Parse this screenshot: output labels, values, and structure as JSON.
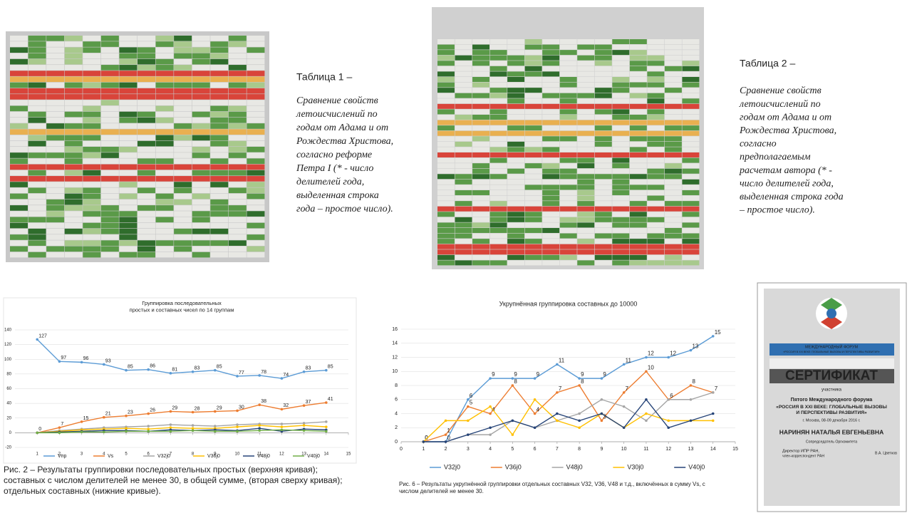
{
  "table1": {
    "title": "Таблица 1 –",
    "lines": [
      "Сравнение свойств",
      "летоисчислений по",
      "годам от Адама и от",
      "Рождества Христова,",
      "согласно реформе",
      "Петра I (* - число",
      "делителей года,",
      "выделенная строка",
      "года – простое число)."
    ]
  },
  "table2": {
    "title": "Таблица  2  –",
    "lines": [
      "Сравнение свойств",
      "летоисчислений по",
      "годам от Адама и от",
      "Рождества Христова,",
      "согласно",
      "предполагаемым",
      "расчетам автора (* -",
      "число делителей года,",
      "выделенная строка года",
      "– простое число)."
    ]
  },
  "chart_data": [
    {
      "type": "line",
      "title": [
        "Группировка последовательных",
        "простых и составных чисел по 14 группам"
      ],
      "x": [
        1,
        2,
        3,
        4,
        5,
        6,
        7,
        8,
        9,
        10,
        11,
        12,
        13,
        14
      ],
      "xlim": [
        0,
        15
      ],
      "xticks": [
        1,
        2,
        3,
        4,
        5,
        6,
        7,
        8,
        9,
        10,
        11,
        12,
        13,
        14,
        15
      ],
      "ylim": [
        -20,
        140
      ],
      "yticks": [
        -20,
        0,
        20,
        40,
        60,
        80,
        100,
        120,
        140
      ],
      "grid": true,
      "series": [
        {
          "name": "Vпр",
          "color": "#5b9bd5",
          "labeled": true,
          "values": [
            127,
            97,
            96,
            93,
            85,
            86,
            81,
            83,
            85,
            77,
            78,
            74,
            83,
            85
          ]
        },
        {
          "name": "Vs",
          "color": "#ed7d31",
          "labeled": true,
          "values": [
            0,
            7,
            15,
            21,
            23,
            26,
            29,
            28,
            29,
            30,
            38,
            32,
            37,
            41
          ]
        },
        {
          "name": "V32j0",
          "color": "#a5a5a5",
          "labeled": false,
          "values": [
            0,
            3,
            5,
            7,
            8,
            9,
            11,
            10,
            9,
            11,
            12,
            12,
            13,
            15
          ]
        },
        {
          "name": "V36j0",
          "color": "#ffc000",
          "labeled": false,
          "values": [
            0,
            2,
            4,
            5,
            6,
            5,
            7,
            6,
            6,
            8,
            10,
            8,
            10,
            8
          ]
        },
        {
          "name": "V48j0",
          "color": "#264478",
          "labeled": false,
          "values": [
            0,
            1,
            2,
            3,
            3,
            2,
            4,
            3,
            4,
            3,
            6,
            2,
            5,
            4
          ]
        },
        {
          "name": "V40j0",
          "color": "#70ad47",
          "labeled": false,
          "values": [
            0,
            0,
            1,
            1,
            2,
            2,
            2,
            3,
            2,
            2,
            3,
            4,
            3,
            2
          ]
        }
      ],
      "caption": [
        "Рис. 2 – Результаты  группировки последовательных простых (верхняя кривая);",
        "составных с числом делителей не менее 30, в общей сумме, (вторая сверху кривая);",
        "отдельных составных (нижние кривые)."
      ]
    },
    {
      "type": "line",
      "title": [
        "Укрупнённая группировка составных до 10000"
      ],
      "x": [
        1,
        2,
        3,
        4,
        5,
        6,
        7,
        8,
        9,
        10,
        11,
        12,
        13,
        14
      ],
      "xlim": [
        0,
        15
      ],
      "xticks": [
        0,
        1,
        2,
        3,
        4,
        5,
        6,
        7,
        8,
        9,
        10,
        11,
        12,
        13,
        14,
        15
      ],
      "ylim": [
        0,
        16
      ],
      "yticks": [
        0,
        2,
        4,
        6,
        8,
        10,
        12,
        14,
        16
      ],
      "grid": true,
      "series": [
        {
          "name": "V32j0",
          "color": "#5b9bd5",
          "labeled": true,
          "values": [
            0,
            0,
            6,
            9,
            9,
            9,
            11,
            9,
            9,
            11,
            12,
            12,
            13,
            15
          ]
        },
        {
          "name": "V36j0",
          "color": "#ed7d31",
          "labeled": true,
          "values": [
            0,
            1,
            5,
            4,
            8,
            4,
            7,
            8,
            3,
            7,
            10,
            6,
            8,
            7
          ]
        },
        {
          "name": "V48j0",
          "color": "#a5a5a5",
          "labeled": false,
          "values": [
            0,
            0,
            1,
            1,
            3,
            2,
            3,
            4,
            6,
            5,
            3,
            6,
            6,
            7
          ]
        },
        {
          "name": "V30j0",
          "color": "#ffc000",
          "labeled": false,
          "values": [
            0,
            3,
            3,
            5,
            1,
            6,
            3,
            2,
            4,
            2,
            4,
            3,
            3,
            3
          ]
        },
        {
          "name": "V40j0",
          "color": "#264478",
          "labeled": false,
          "values": [
            0,
            0,
            1,
            2,
            3,
            2,
            4,
            3,
            4,
            2,
            6,
            2,
            3,
            4
          ]
        }
      ],
      "caption": [
        "Рис. 6 – Результаты  укрупнённой  группировки  отдельных составных V32, V36, V48 и т.д., включённых в сумму Vs, с",
        "числом делителей  не менее 30."
      ]
    }
  ],
  "certificate": {
    "forum": "МЕЖДУНАРОДНЫЙ ФОРУМ",
    "forum_name": "«РОССИЯ В XXI ВЕКЕ: ГЛОБАЛЬНЫЕ ВЫЗОВЫ И ПЕРСПЕКТИВЫ РАЗВИТИЯ»",
    "title": "СЕРТИФИКАТ",
    "role": "участника",
    "event": "Пятого Международного форума",
    "event_name": [
      "«РОССИЯ В XXI ВЕКЕ: ГЛОБАЛЬНЫЕ ВЫЗОВЫ",
      "И ПЕРСПЕКТИВЫ РАЗВИТИЯ»"
    ],
    "place": "г. Москва, 08-09 декабря 2016 г.",
    "person": "НАРИНЯН НАТАЛЬЯ ЕВГЕНЬЕВНА",
    "cochair": "Сопредседатель Оргкомитета",
    "position": [
      "Директор ИПР РАН,",
      "член-корреспондент РАН"
    ],
    "signature": "В.А. Цветков"
  }
}
